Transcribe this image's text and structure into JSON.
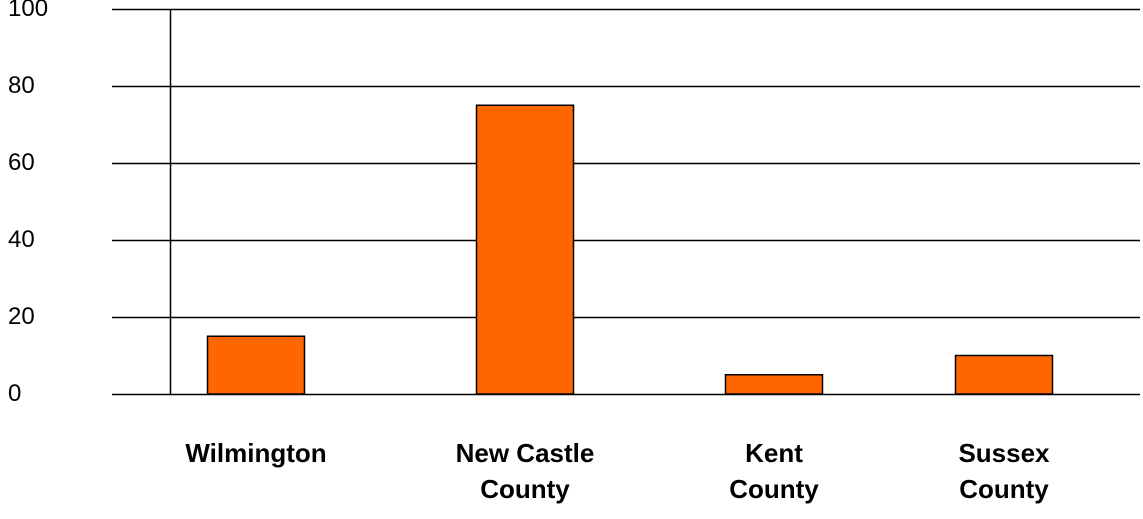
{
  "chart_data": {
    "type": "bar",
    "title": "",
    "xlabel": "",
    "ylabel": "",
    "categories": [
      [
        "Wilmington"
      ],
      [
        "New Castle",
        "County"
      ],
      [
        "Kent",
        "County"
      ],
      [
        "Sussex",
        "County"
      ]
    ],
    "values": [
      15,
      75,
      5,
      10
    ],
    "ylim": [
      0,
      100
    ],
    "yticks": [
      0,
      20,
      40,
      60,
      80,
      100
    ],
    "grid": true,
    "legend": "none",
    "bar_color": "#FF6600",
    "bar_edge_color": "#000000"
  }
}
